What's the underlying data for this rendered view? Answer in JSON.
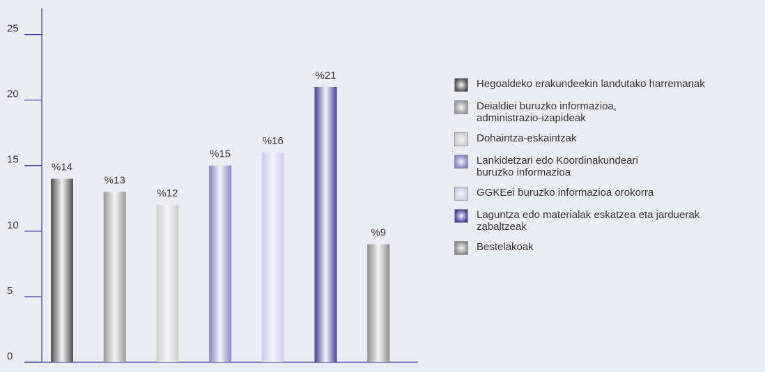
{
  "chart_data": {
    "type": "bar",
    "categories": [
      "Hegoaldeko erakundeekin landutako harremanak",
      "Deialdiei buruzko informazioa,\nadministrazio-izapideak",
      "Dohaintza-eskaintzak",
      "Lankidetzari edo Koordinakundeari\nburuzko informazioa",
      "GGKEei buruzko informazioa orokorra",
      "Laguntza edo materialak eskatzea eta jarduerak\nzabaltzeak",
      "Bestelakoak"
    ],
    "values": [
      14,
      13,
      12,
      15,
      16,
      21,
      9
    ],
    "value_labels": [
      "%14",
      "%13",
      "%12",
      "%15",
      "%16",
      "%21",
      "%9"
    ],
    "colors": [
      "#4e4e4e",
      "#9a9a9a",
      "#cfcfcf",
      "#8686c2",
      "#cdcde8",
      "#43439a",
      "#8c8c8c"
    ],
    "ylim": [
      0,
      27
    ],
    "yticks": [
      0,
      5,
      10,
      15,
      20,
      25
    ]
  }
}
